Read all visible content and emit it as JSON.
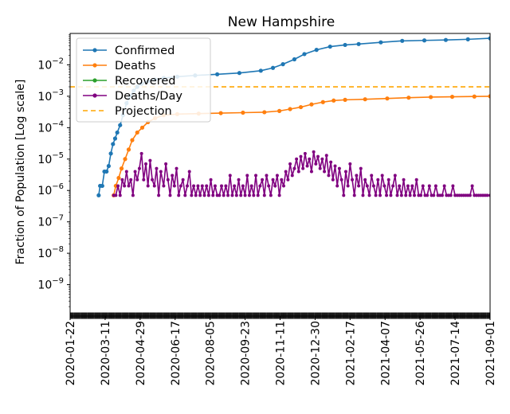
{
  "chart_data": {
    "type": "line",
    "title": "New Hampshire",
    "ylabel": "Fraction of Population [Log scale]",
    "xlabel": "",
    "y_scale": "log",
    "ylim": [
      1e-10,
      0.1
    ],
    "xlim": [
      "2020-01-22",
      "2021-09-01"
    ],
    "grid": false,
    "legend_position": "top-left",
    "x_tick_labels": [
      "2020-01-22",
      "2020-03-11",
      "2020-04-29",
      "2020-06-17",
      "2020-08-05",
      "2020-09-23",
      "2020-11-11",
      "2020-12-30",
      "2021-02-17",
      "2021-04-07",
      "2021-05-26",
      "2021-07-14",
      "2021-09-01"
    ],
    "y_tick_labels": [
      {
        "value": 1e-09,
        "base": "10",
        "exp": "−9"
      },
      {
        "value": 1e-08,
        "base": "10",
        "exp": "−8"
      },
      {
        "value": 1e-07,
        "base": "10",
        "exp": "−7"
      },
      {
        "value": 1e-06,
        "base": "10",
        "exp": "−6"
      },
      {
        "value": 1e-05,
        "base": "10",
        "exp": "−5"
      },
      {
        "value": 0.0001,
        "base": "10",
        "exp": "−4"
      },
      {
        "value": 0.001,
        "base": "10",
        "exp": "−3"
      },
      {
        "value": 0.01,
        "base": "10",
        "exp": "−2"
      }
    ],
    "series": [
      {
        "name": "Confirmed",
        "color": "#1f77b4",
        "style": "line-dots",
        "points": [
          [
            "2020-03-02",
            7e-07
          ],
          [
            "2020-03-04",
            1.4e-06
          ],
          [
            "2020-03-07",
            1.4e-06
          ],
          [
            "2020-03-10",
            4e-06
          ],
          [
            "2020-03-13",
            4e-06
          ],
          [
            "2020-03-16",
            6e-06
          ],
          [
            "2020-03-19",
            1.5e-05
          ],
          [
            "2020-03-22",
            3e-05
          ],
          [
            "2020-03-25",
            4.5e-05
          ],
          [
            "2020-03-28",
            7e-05
          ],
          [
            "2020-04-01",
            0.00012
          ],
          [
            "2020-04-05",
            0.00025
          ],
          [
            "2020-04-10",
            0.0006
          ],
          [
            "2020-04-15",
            0.001
          ],
          [
            "2020-04-20",
            0.0015
          ],
          [
            "2020-04-25",
            0.002
          ],
          [
            "2020-05-01",
            0.0025
          ],
          [
            "2020-05-10",
            0.003
          ],
          [
            "2020-05-20",
            0.0034
          ],
          [
            "2020-06-01",
            0.0038
          ],
          [
            "2020-06-20",
            0.0042
          ],
          [
            "2020-07-15",
            0.0046
          ],
          [
            "2020-08-15",
            0.005
          ],
          [
            "2020-09-15",
            0.0055
          ],
          [
            "2020-10-15",
            0.0065
          ],
          [
            "2020-11-01",
            0.008
          ],
          [
            "2020-11-15",
            0.0105
          ],
          [
            "2020-12-01",
            0.015
          ],
          [
            "2020-12-15",
            0.022
          ],
          [
            "2021-01-01",
            0.03
          ],
          [
            "2021-01-20",
            0.038
          ],
          [
            "2021-02-10",
            0.043
          ],
          [
            "2021-03-01",
            0.046
          ],
          [
            "2021-04-01",
            0.052
          ],
          [
            "2021-05-01",
            0.058
          ],
          [
            "2021-06-01",
            0.06
          ],
          [
            "2021-07-01",
            0.062
          ],
          [
            "2021-08-01",
            0.065
          ],
          [
            "2021-09-01",
            0.07
          ]
        ]
      },
      {
        "name": "Deaths",
        "color": "#ff7f0e",
        "style": "line-dots",
        "points": [
          [
            "2020-03-23",
            7e-07
          ],
          [
            "2020-03-26",
            1.4e-06
          ],
          [
            "2020-03-30",
            2.5e-06
          ],
          [
            "2020-04-03",
            5e-06
          ],
          [
            "2020-04-08",
            1e-05
          ],
          [
            "2020-04-13",
            2e-05
          ],
          [
            "2020-04-18",
            4e-05
          ],
          [
            "2020-04-25",
            7e-05
          ],
          [
            "2020-05-02",
            0.0001
          ],
          [
            "2020-05-10",
            0.00015
          ],
          [
            "2020-05-20",
            0.0002
          ],
          [
            "2020-06-01",
            0.00025
          ],
          [
            "2020-06-20",
            0.00027
          ],
          [
            "2020-07-20",
            0.00028
          ],
          [
            "2020-08-20",
            0.00029
          ],
          [
            "2020-09-20",
            0.0003
          ],
          [
            "2020-10-20",
            0.00031
          ],
          [
            "2020-11-10",
            0.00034
          ],
          [
            "2020-11-25",
            0.00039
          ],
          [
            "2020-12-10",
            0.00045
          ],
          [
            "2020-12-25",
            0.00055
          ],
          [
            "2021-01-10",
            0.00065
          ],
          [
            "2021-01-25",
            0.00073
          ],
          [
            "2021-02-10",
            0.00077
          ],
          [
            "2021-03-10",
            0.0008
          ],
          [
            "2021-04-10",
            0.00085
          ],
          [
            "2021-05-10",
            0.0009
          ],
          [
            "2021-06-10",
            0.00094
          ],
          [
            "2021-07-10",
            0.00096
          ],
          [
            "2021-08-10",
            0.00098
          ],
          [
            "2021-09-01",
            0.001
          ]
        ]
      },
      {
        "name": "Recovered",
        "color": "#2ca02c",
        "style": "line-dots",
        "points": []
      },
      {
        "name": "Deaths/Day",
        "color": "#800080",
        "style": "line-dots",
        "points": [
          [
            "2020-03-23",
            7e-07
          ],
          [
            "2020-03-26",
            7e-07
          ],
          [
            "2020-03-29",
            1.4e-06
          ],
          [
            "2020-04-01",
            7e-07
          ],
          [
            "2020-04-04",
            2.2e-06
          ],
          [
            "2020-04-07",
            1.4e-06
          ],
          [
            "2020-04-10",
            4e-06
          ],
          [
            "2020-04-13",
            1.4e-06
          ],
          [
            "2020-04-16",
            2.2e-06
          ],
          [
            "2020-04-19",
            7e-07
          ],
          [
            "2020-04-22",
            4e-06
          ],
          [
            "2020-04-25",
            2.2e-06
          ],
          [
            "2020-04-28",
            5e-06
          ],
          [
            "2020-05-01",
            1.5e-05
          ],
          [
            "2020-05-04",
            2.2e-06
          ],
          [
            "2020-05-07",
            7e-06
          ],
          [
            "2020-05-10",
            1.4e-06
          ],
          [
            "2020-05-13",
            9e-06
          ],
          [
            "2020-05-16",
            2.2e-06
          ],
          [
            "2020-05-19",
            1.4e-06
          ],
          [
            "2020-05-22",
            5e-06
          ],
          [
            "2020-05-25",
            7e-07
          ],
          [
            "2020-05-28",
            4e-06
          ],
          [
            "2020-06-01",
            1.4e-06
          ],
          [
            "2020-06-04",
            7e-06
          ],
          [
            "2020-06-07",
            2.2e-06
          ],
          [
            "2020-06-10",
            7e-07
          ],
          [
            "2020-06-13",
            3e-06
          ],
          [
            "2020-06-16",
            1.4e-06
          ],
          [
            "2020-06-19",
            5e-06
          ],
          [
            "2020-06-22",
            7e-07
          ],
          [
            "2020-06-25",
            1.4e-06
          ],
          [
            "2020-06-28",
            2.2e-06
          ],
          [
            "2020-07-01",
            7e-07
          ],
          [
            "2020-07-04",
            1.4e-06
          ],
          [
            "2020-07-07",
            4e-06
          ],
          [
            "2020-07-10",
            7e-07
          ],
          [
            "2020-07-13",
            1.4e-06
          ],
          [
            "2020-07-16",
            7e-07
          ],
          [
            "2020-07-19",
            1.4e-06
          ],
          [
            "2020-07-22",
            7e-07
          ],
          [
            "2020-07-25",
            1.4e-06
          ],
          [
            "2020-07-28",
            7e-07
          ],
          [
            "2020-07-31",
            1.4e-06
          ],
          [
            "2020-08-03",
            7e-07
          ],
          [
            "2020-08-06",
            2.2e-06
          ],
          [
            "2020-08-09",
            7e-07
          ],
          [
            "2020-08-12",
            1.4e-06
          ],
          [
            "2020-08-15",
            7e-07
          ],
          [
            "2020-08-18",
            7e-07
          ],
          [
            "2020-08-21",
            1.4e-06
          ],
          [
            "2020-08-24",
            7e-07
          ],
          [
            "2020-08-27",
            1.4e-06
          ],
          [
            "2020-08-30",
            7e-07
          ],
          [
            "2020-09-02",
            3e-06
          ],
          [
            "2020-09-05",
            7e-07
          ],
          [
            "2020-09-08",
            1.4e-06
          ],
          [
            "2020-09-11",
            7e-07
          ],
          [
            "2020-09-14",
            2.2e-06
          ],
          [
            "2020-09-17",
            7e-07
          ],
          [
            "2020-09-20",
            1.4e-06
          ],
          [
            "2020-09-23",
            7e-07
          ],
          [
            "2020-09-26",
            3e-06
          ],
          [
            "2020-09-29",
            7e-07
          ],
          [
            "2020-10-02",
            1.4e-06
          ],
          [
            "2020-10-05",
            7e-07
          ],
          [
            "2020-10-08",
            3e-06
          ],
          [
            "2020-10-11",
            7e-07
          ],
          [
            "2020-10-14",
            1.4e-06
          ],
          [
            "2020-10-17",
            2.2e-06
          ],
          [
            "2020-10-20",
            7e-07
          ],
          [
            "2020-10-23",
            3e-06
          ],
          [
            "2020-10-26",
            1.4e-06
          ],
          [
            "2020-10-29",
            7e-07
          ],
          [
            "2020-11-01",
            2.2e-06
          ],
          [
            "2020-11-04",
            1.4e-06
          ],
          [
            "2020-11-07",
            3e-06
          ],
          [
            "2020-11-10",
            7e-07
          ],
          [
            "2020-11-13",
            2.2e-06
          ],
          [
            "2020-11-16",
            1.4e-06
          ],
          [
            "2020-11-19",
            4e-06
          ],
          [
            "2020-11-22",
            2.2e-06
          ],
          [
            "2020-11-25",
            7e-06
          ],
          [
            "2020-11-28",
            3e-06
          ],
          [
            "2020-12-01",
            5e-06
          ],
          [
            "2020-12-04",
            1e-05
          ],
          [
            "2020-12-07",
            4e-06
          ],
          [
            "2020-12-10",
            1.2e-05
          ],
          [
            "2020-12-13",
            5e-06
          ],
          [
            "2020-12-16",
            1.5e-05
          ],
          [
            "2020-12-19",
            6e-06
          ],
          [
            "2020-12-22",
            1e-05
          ],
          [
            "2020-12-25",
            4e-06
          ],
          [
            "2020-12-28",
            1.7e-05
          ],
          [
            "2020-12-31",
            7e-06
          ],
          [
            "2021-01-03",
            1.2e-05
          ],
          [
            "2021-01-06",
            5e-06
          ],
          [
            "2021-01-09",
            1e-05
          ],
          [
            "2021-01-12",
            4e-06
          ],
          [
            "2021-01-15",
            1.3e-05
          ],
          [
            "2021-01-18",
            3e-06
          ],
          [
            "2021-01-21",
            8e-06
          ],
          [
            "2021-01-24",
            2.2e-06
          ],
          [
            "2021-01-27",
            6e-06
          ],
          [
            "2021-01-30",
            1.4e-06
          ],
          [
            "2021-02-02",
            5e-06
          ],
          [
            "2021-02-05",
            2.2e-06
          ],
          [
            "2021-02-08",
            7e-07
          ],
          [
            "2021-02-11",
            4e-06
          ],
          [
            "2021-02-14",
            1.4e-06
          ],
          [
            "2021-02-17",
            7e-06
          ],
          [
            "2021-02-20",
            2.2e-06
          ],
          [
            "2021-02-23",
            7e-07
          ],
          [
            "2021-02-26",
            3e-06
          ],
          [
            "2021-03-01",
            1.4e-06
          ],
          [
            "2021-03-04",
            5e-06
          ],
          [
            "2021-03-07",
            7e-07
          ],
          [
            "2021-03-10",
            2.2e-06
          ],
          [
            "2021-03-13",
            1.4e-06
          ],
          [
            "2021-03-16",
            7e-07
          ],
          [
            "2021-03-19",
            3e-06
          ],
          [
            "2021-03-22",
            1.4e-06
          ],
          [
            "2021-03-25",
            7e-07
          ],
          [
            "2021-03-28",
            2.2e-06
          ],
          [
            "2021-03-31",
            7e-07
          ],
          [
            "2021-04-03",
            3e-06
          ],
          [
            "2021-04-06",
            1.4e-06
          ],
          [
            "2021-04-09",
            7e-07
          ],
          [
            "2021-04-12",
            2.2e-06
          ],
          [
            "2021-04-15",
            7e-07
          ],
          [
            "2021-04-18",
            1.4e-06
          ],
          [
            "2021-04-21",
            3e-06
          ],
          [
            "2021-04-24",
            7e-07
          ],
          [
            "2021-04-27",
            1.4e-06
          ],
          [
            "2021-04-30",
            7e-07
          ],
          [
            "2021-05-03",
            2.2e-06
          ],
          [
            "2021-05-06",
            7e-07
          ],
          [
            "2021-05-09",
            1.4e-06
          ],
          [
            "2021-05-12",
            7e-07
          ],
          [
            "2021-05-15",
            1.4e-06
          ],
          [
            "2021-05-18",
            7e-07
          ],
          [
            "2021-05-21",
            2.2e-06
          ],
          [
            "2021-05-24",
            7e-07
          ],
          [
            "2021-05-27",
            7e-07
          ],
          [
            "2021-05-30",
            1.4e-06
          ],
          [
            "2021-06-02",
            7e-07
          ],
          [
            "2021-06-05",
            7e-07
          ],
          [
            "2021-06-08",
            1.4e-06
          ],
          [
            "2021-06-11",
            7e-07
          ],
          [
            "2021-06-14",
            7e-07
          ],
          [
            "2021-06-17",
            1.4e-06
          ],
          [
            "2021-06-20",
            7e-07
          ],
          [
            "2021-06-23",
            7e-07
          ],
          [
            "2021-06-26",
            7e-07
          ],
          [
            "2021-06-29",
            1.4e-06
          ],
          [
            "2021-07-02",
            7e-07
          ],
          [
            "2021-07-05",
            7e-07
          ],
          [
            "2021-07-08",
            7e-07
          ],
          [
            "2021-07-11",
            1.4e-06
          ],
          [
            "2021-07-14",
            7e-07
          ],
          [
            "2021-07-17",
            7e-07
          ],
          [
            "2021-07-20",
            7e-07
          ],
          [
            "2021-07-23",
            7e-07
          ],
          [
            "2021-07-26",
            7e-07
          ],
          [
            "2021-07-29",
            7e-07
          ],
          [
            "2021-08-01",
            7e-07
          ],
          [
            "2021-08-04",
            7e-07
          ],
          [
            "2021-08-07",
            1.4e-06
          ],
          [
            "2021-08-10",
            7e-07
          ],
          [
            "2021-08-13",
            7e-07
          ],
          [
            "2021-08-16",
            7e-07
          ],
          [
            "2021-08-19",
            7e-07
          ],
          [
            "2021-08-22",
            7e-07
          ],
          [
            "2021-08-25",
            7e-07
          ],
          [
            "2021-08-28",
            7e-07
          ],
          [
            "2021-09-01",
            7e-07
          ]
        ]
      },
      {
        "name": "Projection",
        "color": "#ffa500",
        "style": "dashed",
        "value": 0.002
      }
    ]
  }
}
